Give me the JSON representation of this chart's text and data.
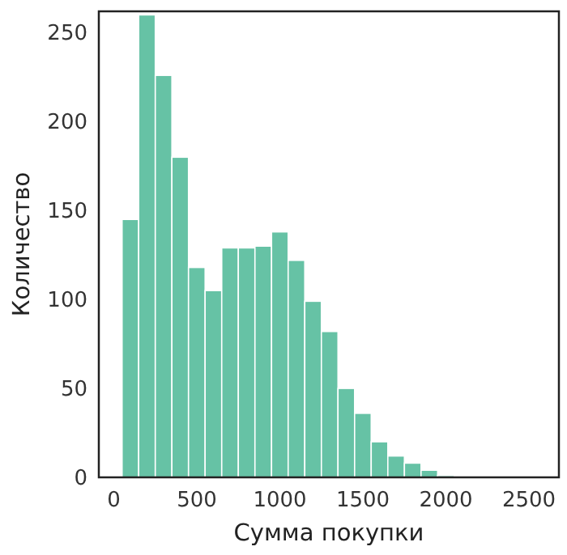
{
  "chart_data": {
    "type": "histogram",
    "xlabel": "Сумма покупки",
    "ylabel": "Количество",
    "color": "#66c2a5",
    "bins": [
      50,
      150,
      250,
      350,
      450,
      550,
      650,
      750,
      850,
      950,
      1050,
      1150,
      1250,
      1350,
      1450,
      1550,
      1650,
      1750,
      1850,
      1950,
      2050
    ],
    "values": [
      145,
      260,
      226,
      180,
      118,
      105,
      129,
      129,
      130,
      138,
      122,
      99,
      82,
      50,
      36,
      20,
      12,
      8,
      4,
      1
    ],
    "xlim": [
      -90,
      2680
    ],
    "ylim": [
      0,
      262
    ],
    "xticks": [
      0,
      500,
      1000,
      1500,
      2000,
      2500
    ],
    "yticks": [
      0,
      50,
      100,
      150,
      200,
      250
    ],
    "grid": false
  }
}
